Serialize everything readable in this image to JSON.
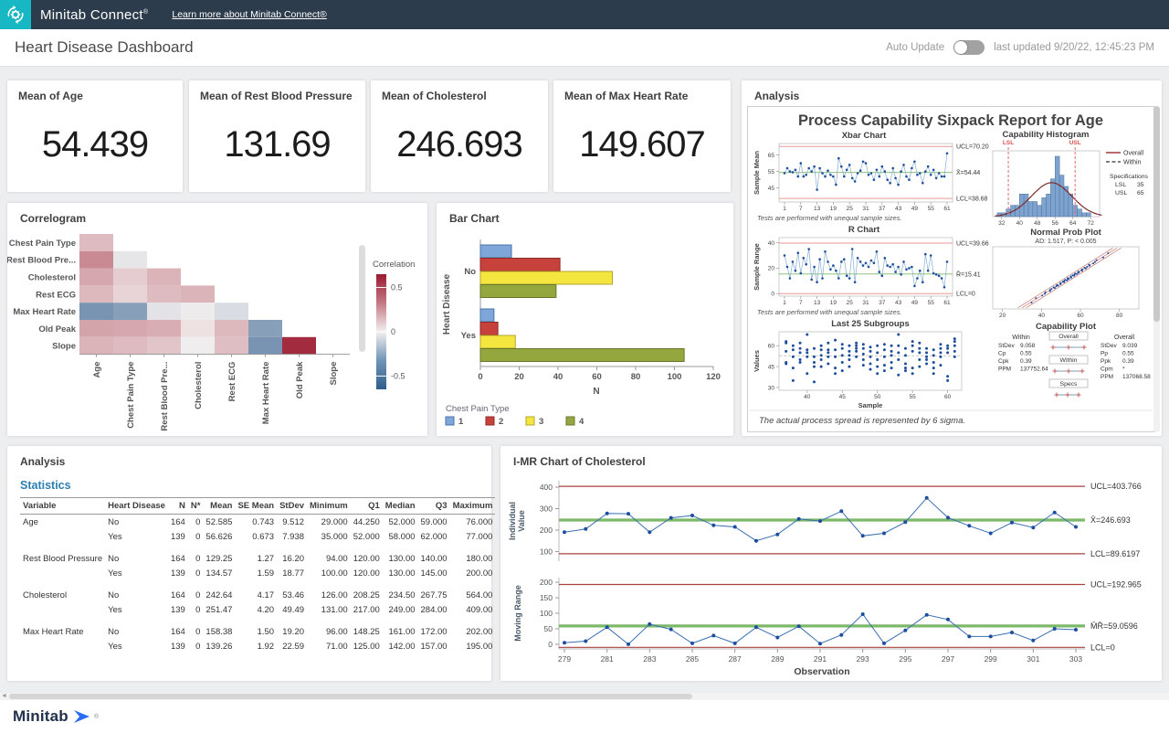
{
  "topbar": {
    "brand": "Minitab Connect",
    "reg": "®",
    "link": "Learn more about Minitab Connect®"
  },
  "header": {
    "title": "Heart Disease Dashboard",
    "auto_update_label": "Auto Update",
    "last_updated": "last updated 9/20/22, 12:45:23 PM"
  },
  "kpis": [
    {
      "label": "Mean of Age",
      "value": "54.439"
    },
    {
      "label": "Mean of Rest Blood Pressure",
      "value": "131.69"
    },
    {
      "label": "Mean of Cholesterol",
      "value": "246.693"
    },
    {
      "label": "Mean of Max Heart Rate",
      "value": "149.607"
    }
  ],
  "panels": {
    "sixpack_header": "Analysis",
    "correlogram_header": "Correlogram",
    "bar_header": "Bar Chart",
    "stats_header": "Analysis",
    "stats_subheader": "Statistics",
    "imr_header": "I-MR Chart of Cholesterol"
  },
  "statistics_table": {
    "headers": [
      "Variable",
      "Heart Disease",
      "N",
      "N*",
      "Mean",
      "SE Mean",
      "StDev",
      "Minimum",
      "Q1",
      "Median",
      "Q3",
      "Maximum"
    ],
    "groups": [
      {
        "variable": "Age",
        "rows": [
          {
            "heart_disease": "No",
            "vals": [
              "164",
              "0",
              "52.585",
              "0.743",
              "9.512",
              "29.000",
              "44.250",
              "52.000",
              "59.000",
              "76.000"
            ]
          },
          {
            "heart_disease": "Yes",
            "vals": [
              "139",
              "0",
              "56.626",
              "0.673",
              "7.938",
              "35.000",
              "52.000",
              "58.000",
              "62.000",
              "77.000"
            ]
          }
        ]
      },
      {
        "variable": "Rest Blood Pressure",
        "rows": [
          {
            "heart_disease": "No",
            "vals": [
              "164",
              "0",
              "129.25",
              "1.27",
              "16.20",
              "94.00",
              "120.00",
              "130.00",
              "140.00",
              "180.00"
            ]
          },
          {
            "heart_disease": "Yes",
            "vals": [
              "139",
              "0",
              "134.57",
              "1.59",
              "18.77",
              "100.00",
              "120.00",
              "130.00",
              "145.00",
              "200.00"
            ]
          }
        ]
      },
      {
        "variable": "Cholesterol",
        "rows": [
          {
            "heart_disease": "No",
            "vals": [
              "164",
              "0",
              "242.64",
              "4.17",
              "53.46",
              "126.00",
              "208.25",
              "234.50",
              "267.75",
              "564.00"
            ]
          },
          {
            "heart_disease": "Yes",
            "vals": [
              "139",
              "0",
              "251.47",
              "4.20",
              "49.49",
              "131.00",
              "217.00",
              "249.00",
              "284.00",
              "409.00"
            ]
          }
        ]
      },
      {
        "variable": "Max Heart Rate",
        "rows": [
          {
            "heart_disease": "No",
            "vals": [
              "164",
              "0",
              "158.38",
              "1.50",
              "19.20",
              "96.00",
              "148.25",
              "161.00",
              "172.00",
              "202.00"
            ]
          },
          {
            "heart_disease": "Yes",
            "vals": [
              "139",
              "0",
              "139.26",
              "1.92",
              "22.59",
              "71.00",
              "125.00",
              "142.00",
              "157.00",
              "195.00"
            ]
          }
        ]
      }
    ]
  },
  "footer": {
    "brand": "Minitab",
    "reg": "®"
  },
  "colors": {
    "navy": "#2d3c4d",
    "teal": "#18b7c4",
    "link_blue": "#2d7fb0",
    "point_blue": "#1d4e9e",
    "series_line": "#86aed2",
    "limit_red": "#a8423e",
    "limit_salmon": "#e79a97",
    "center_green": "#7cb969",
    "hist_fill": "#7ea3cf",
    "hist_stroke": "#4d749f",
    "heat_red": "#9b1b30",
    "heat_blue": "#2f5e8d",
    "heat_white": "#f4f0f0"
  },
  "chart_data": [
    {
      "id": "correlogram",
      "type": "heatmap",
      "title": "Correlogram",
      "rows": [
        "Chest Pain Type",
        "Rest Blood Pre...",
        "Cholesterol",
        "Rest ECG",
        "Max Heart Rate",
        "Old Peak",
        "Slope"
      ],
      "cols": [
        "Age",
        "Chest Pain Type",
        "Rest Blood Pre...",
        "Cholesterol",
        "Rest ECG",
        "Max Heart Rate",
        "Old Peak",
        "Slope"
      ],
      "values": [
        [
          0.15
        ],
        [
          0.3,
          -0.04
        ],
        [
          0.21,
          0.1,
          0.17
        ],
        [
          0.16,
          0.08,
          0.15,
          0.17
        ],
        [
          -0.4,
          -0.35,
          -0.05,
          -0.02,
          -0.08
        ],
        [
          0.22,
          0.21,
          0.19,
          0.04,
          0.16,
          -0.35
        ],
        [
          0.17,
          0.15,
          0.12,
          -0.01,
          0.14,
          -0.4,
          0.6
        ]
      ],
      "scale_max": 0.65,
      "colorbar": {
        "label": "Correlation",
        "ticks": [
          "0.5",
          "0",
          "-0.5"
        ],
        "tick_values": [
          0.5,
          0,
          -0.5
        ]
      }
    },
    {
      "id": "bar_chart",
      "type": "bar",
      "orientation": "horizontal",
      "categories": [
        "No",
        "Yes"
      ],
      "ylabel": "Heart Disease",
      "xlabel": "N",
      "xlim": [
        0,
        120
      ],
      "xticks": [
        0,
        20,
        40,
        60,
        80,
        100,
        120
      ],
      "legend_title": "Chest Pain Type",
      "series": [
        {
          "name": "1",
          "fill": "#7ea6d9",
          "stroke": "#4a76a8",
          "values": [
            16,
            7
          ]
        },
        {
          "name": "2",
          "fill": "#c8423c",
          "stroke": "#8e2a26",
          "values": [
            41,
            9
          ]
        },
        {
          "name": "3",
          "fill": "#f5e63f",
          "stroke": "#b3a52c",
          "values": [
            68,
            18
          ]
        },
        {
          "name": "4",
          "fill": "#94a73e",
          "stroke": "#68772a",
          "values": [
            39,
            105
          ]
        }
      ]
    },
    {
      "id": "sixpack",
      "type": "line",
      "title": "Process Capability Sixpack Report for Age",
      "xbar": {
        "title": "Xbar Chart",
        "ylabel": "Sample Mean",
        "ucl": 70.2,
        "center": 54.44,
        "lcl": 38.68,
        "ucl_label": "UCL=70.20",
        "center_label": "X̄=54.44",
        "lcl_label": "LCL=38.68",
        "yticks": [
          65,
          55,
          45
        ],
        "xticks": [
          1,
          7,
          13,
          19,
          25,
          31,
          37,
          43,
          49,
          55,
          61
        ],
        "note": "Tests are performed with unequal sample sizes.",
        "values": [
          54,
          57,
          55,
          54.5,
          56,
          52,
          60,
          52,
          53,
          57,
          55,
          58,
          44,
          57,
          54,
          52,
          55.5,
          53,
          52,
          47,
          63,
          58,
          52,
          56,
          59,
          51,
          49,
          54,
          55.5,
          61,
          60,
          53,
          54,
          50,
          56,
          52,
          58,
          55,
          50,
          48,
          57,
          51,
          47,
          55,
          59,
          52,
          50,
          57,
          61,
          53,
          54,
          48,
          55,
          58,
          53,
          56,
          51,
          54,
          52,
          52,
          66
        ]
      },
      "rchart": {
        "title": "R Chart",
        "ylabel": "Sample Range",
        "ucl": 39.66,
        "center": 15.41,
        "lcl": 0,
        "ucl_label": "UCL=39.66",
        "center_label": "R̄=15.41",
        "lcl_label": "LCL=0",
        "yticks": [
          40,
          20,
          0
        ],
        "xticks": [
          1,
          7,
          13,
          19,
          25,
          31,
          37,
          43,
          49,
          55,
          61
        ],
        "note": "Tests are performed with unequal sample sizes.",
        "values": [
          30,
          21,
          12,
          25,
          18,
          32,
          16,
          28,
          23,
          35,
          11,
          21,
          9,
          27,
          12,
          33,
          25,
          19,
          22,
          18,
          12,
          25,
          27,
          14,
          12,
          35,
          9,
          28,
          25,
          22,
          24,
          21,
          26,
          24,
          33,
          17,
          14,
          28,
          22,
          21,
          23,
          17,
          21,
          15,
          25,
          19,
          20,
          21,
          6,
          12,
          18,
          9,
          31,
          18,
          30,
          16,
          15,
          14,
          12,
          5,
          25
        ]
      },
      "last25": {
        "title": "Last 25 Subgroups",
        "ylabel": "Values",
        "xlabel": "Sample",
        "yticks": [
          60,
          45,
          30
        ],
        "xticks": [
          40,
          45,
          50,
          55,
          60
        ],
        "centerline": 52.8,
        "points": {
          "37": [
            48,
            47,
            56,
            62,
            63
          ],
          "38": [
            35,
            44,
            57,
            60,
            52
          ],
          "39": [
            50,
            55,
            58,
            62,
            48
          ],
          "40": [
            40,
            52,
            55,
            57,
            68
          ],
          "41": [
            34,
            45,
            48,
            52,
            58
          ],
          "42": [
            45,
            50,
            53,
            57,
            60
          ],
          "43": [
            52,
            55,
            57,
            62,
            47
          ],
          "44": [
            44,
            40,
            52,
            57,
            64
          ],
          "45": [
            42,
            48,
            53,
            58,
            61
          ],
          "46": [
            50,
            53,
            56,
            60,
            45
          ],
          "47": [
            56,
            58,
            60,
            62,
            52
          ],
          "48": [
            46,
            50,
            54,
            58,
            61
          ],
          "49": [
            43,
            47,
            52,
            56,
            59
          ],
          "50": [
            40,
            45,
            50,
            55,
            60
          ],
          "51": [
            42,
            46,
            52,
            57,
            61
          ],
          "52": [
            48,
            53,
            56,
            60,
            44
          ],
          "53": [
            39,
            50,
            55,
            60,
            68
          ],
          "54": [
            42,
            44,
            47,
            53,
            58
          ],
          "55": [
            40,
            44,
            56,
            60,
            63
          ],
          "56": [
            45,
            50,
            55,
            58,
            62
          ],
          "57": [
            47,
            52,
            55,
            58,
            50
          ],
          "58": [
            40,
            44,
            48,
            53,
            57
          ],
          "59": [
            52,
            55,
            58,
            61,
            46
          ],
          "60": [
            35,
            38,
            55,
            58,
            60
          ],
          "61": [
            52,
            56,
            60,
            63,
            65
          ]
        }
      },
      "histogram": {
        "title": "Capability Histogram",
        "lsl": 35,
        "usl": 65,
        "lsl_label": "LSL",
        "usl_label": "USL",
        "bin_start": 30,
        "bin_width": 2,
        "bins": [
          1,
          1,
          2,
          3,
          3,
          6,
          6,
          4,
          4,
          3,
          5,
          6,
          10,
          16,
          11,
          8,
          6,
          3,
          2,
          1,
          1
        ],
        "xticks": [
          32,
          40,
          48,
          56,
          64,
          72
        ],
        "curve": {
          "mean": 54.44,
          "sd": 9.0,
          "peak": 9
        },
        "legend": [
          {
            "label": "Overall"
          },
          {
            "label": "Within"
          }
        ],
        "specs": {
          "title": "Specifications",
          "rows": [
            [
              "LSL",
              "35"
            ],
            [
              "USL",
              "65"
            ]
          ]
        }
      },
      "probplot": {
        "title": "Normal Prob Plot",
        "subtitle": "AD: 1.517, P: < 0.005",
        "xticks": [
          20,
          40,
          60,
          80
        ],
        "mean": 54.44,
        "sd": 9.0,
        "n": 48
      },
      "capplot": {
        "title": "Capability Plot",
        "within": {
          "title": "Within",
          "rows": [
            [
              "StDev",
              "9.058"
            ],
            [
              "Cp",
              "0.55"
            ],
            [
              "Cpk",
              "0.39"
            ],
            [
              "PPM",
              "137752.64"
            ]
          ]
        },
        "overall": {
          "title": "Overall",
          "rows": [
            [
              "StDev",
              "9.039"
            ],
            [
              "Pp",
              "0.55"
            ],
            [
              "Ppk",
              "0.39"
            ],
            [
              "Cpm",
              "*"
            ],
            [
              "PPM",
              "137068.58"
            ]
          ]
        },
        "boxes": [
          "Overall",
          "Within",
          "Specs"
        ]
      },
      "footnote": "The actual process spread is represented by 6 sigma."
    },
    {
      "id": "imr",
      "type": "line",
      "title": "I-MR Chart of Cholesterol",
      "individual": {
        "ylabel_lines": [
          "Individual",
          "Value"
        ],
        "yticks": [
          400,
          300,
          200,
          100
        ],
        "ucl": 403.766,
        "center": 246.693,
        "lcl": 89.6197,
        "ucl_label": "UCL=403.766",
        "center_label": "X̄=246.693",
        "lcl_label": "LCL=89.6197",
        "values": [
          190,
          205,
          278,
          276,
          190,
          257,
          268,
          222,
          215,
          150,
          180,
          252,
          242,
          288,
          173,
          185,
          237,
          350,
          258,
          220,
          185,
          235,
          212,
          282,
          215
        ]
      },
      "moving_range": {
        "ylabel_lines": [
          "Moving Range"
        ],
        "yticks": [
          200,
          150,
          100,
          50,
          0
        ],
        "ucl": 192.965,
        "center": 59.0596,
        "lcl": 0,
        "ucl_label": "UCL=192.965",
        "center_label": "M̄R̄=59.0596",
        "lcl_label": "LCL=0",
        "values": [
          5,
          10,
          55,
          0,
          65,
          48,
          3,
          28,
          3,
          55,
          22,
          58,
          2,
          30,
          97,
          3,
          45,
          95,
          80,
          25,
          25,
          38,
          12,
          50,
          47
        ]
      },
      "x_start": 279,
      "xticks": [
        279,
        281,
        283,
        285,
        287,
        289,
        291,
        293,
        295,
        297,
        299,
        301,
        303
      ],
      "xlabel": "Observation"
    }
  ]
}
